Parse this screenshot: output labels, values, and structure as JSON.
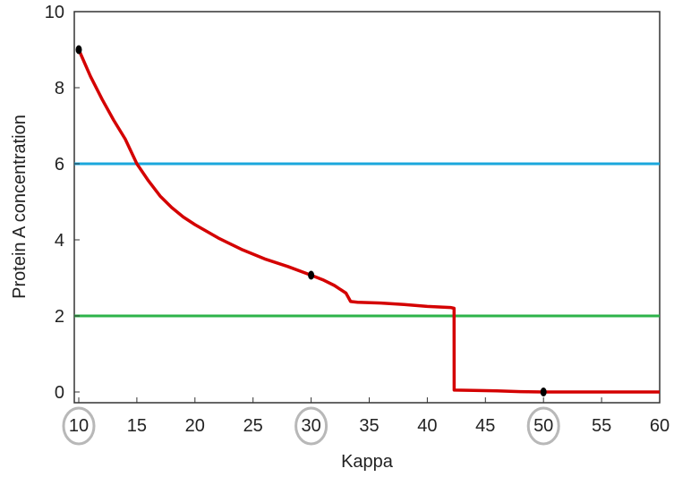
{
  "chart_data": {
    "type": "line",
    "xlabel": "Kappa",
    "ylabel": "Protein A concentration",
    "xlim": [
      10,
      60
    ],
    "ylim": [
      -0.4,
      10
    ],
    "xticks": [
      10,
      15,
      20,
      25,
      30,
      35,
      40,
      45,
      50,
      55,
      60
    ],
    "yticks": [
      0,
      2,
      4,
      6,
      8,
      10
    ],
    "grid": false,
    "circled_xticks": [
      10,
      30,
      50
    ],
    "series": [
      {
        "color": "#d40000",
        "x": [
          10,
          11,
          12,
          13,
          14,
          15,
          16,
          17,
          18,
          19,
          20,
          22,
          24,
          26,
          28,
          30,
          31,
          32,
          33,
          33.4,
          34,
          36,
          38,
          40,
          42,
          42.3,
          42.31,
          44,
          46,
          48,
          50,
          52,
          55,
          58,
          60
        ],
        "y": [
          9.0,
          8.3,
          7.7,
          7.15,
          6.65,
          6.0,
          5.55,
          5.15,
          4.85,
          4.6,
          4.4,
          4.05,
          3.75,
          3.5,
          3.3,
          3.07,
          2.95,
          2.8,
          2.6,
          2.38,
          2.36,
          2.34,
          2.3,
          2.25,
          2.22,
          2.2,
          0.05,
          0.04,
          0.03,
          0.01,
          0.0,
          0.0,
          0.0,
          0.0,
          0.0
        ]
      }
    ],
    "horizontal_lines": [
      {
        "y": 6,
        "color": "#1aa7dc"
      },
      {
        "y": 2,
        "color": "#2db34a"
      }
    ],
    "marked_points": [
      {
        "x": 10,
        "y": 9.0
      },
      {
        "x": 30,
        "y": 3.07
      },
      {
        "x": 50,
        "y": 0.0
      }
    ]
  }
}
